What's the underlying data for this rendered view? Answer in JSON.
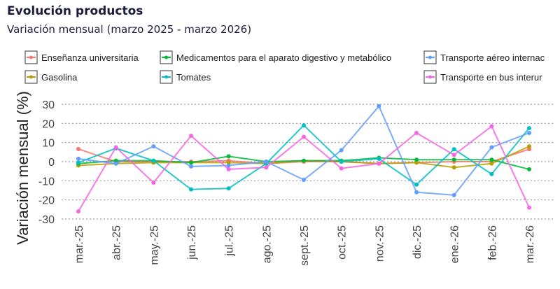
{
  "title": "Evolución productos",
  "subtitle": "Variación mensual (marzo 2025 - marzo 2026)",
  "chart_data": {
    "type": "line",
    "title": "Evolución productos",
    "subtitle": "Variación mensual (marzo 2025 - marzo 2026)",
    "xlabel": "",
    "ylabel": "Variación mensual (%)",
    "ylim": [
      -30,
      30
    ],
    "yticks": [
      30,
      20,
      10,
      0,
      -10,
      -20,
      -30
    ],
    "grid": true,
    "legend": "top",
    "categories": [
      "mar.-25",
      "abr.-25",
      "may.-25",
      "jun.-25",
      "jul.-25",
      "ago.-25",
      "sept.-25",
      "oct.-25",
      "nov.-25",
      "dic.-25",
      "ene.-26",
      "feb.-26",
      "mar.-26"
    ],
    "series": [
      {
        "name": "Enseñanza universitaria",
        "color": "#F8766D",
        "values": [
          6.6,
          0,
          0,
          0,
          0.5,
          -1,
          0,
          0,
          -1,
          -0.5,
          0,
          0,
          6.5
        ]
      },
      {
        "name": "Gasolina",
        "color": "#B79F00",
        "values": [
          -2,
          -1,
          -0.5,
          -0.5,
          -0.5,
          -1,
          0.5,
          0,
          -1,
          -0.5,
          -3,
          -1,
          8
        ]
      },
      {
        "name": "Medicamentos para el aparato digestivo y metabólico",
        "color": "#00BA38",
        "values": [
          -1,
          0.5,
          0.5,
          -0.5,
          2.8,
          0,
          0.5,
          0.5,
          2,
          1,
          1,
          1,
          -4
        ]
      },
      {
        "name": "Tomates",
        "color": "#00BFC4",
        "values": [
          -0.5,
          7,
          0.5,
          -14.5,
          -14,
          -1,
          19,
          0,
          1.5,
          -12,
          6.5,
          -6.5,
          17.5
        ]
      },
      {
        "name": "Transporte aéreo internac",
        "color": "#619CFF",
        "values": [
          1.5,
          -1,
          8,
          -2.5,
          -2,
          0,
          -9.5,
          6,
          29,
          -16,
          -17.5,
          7.5,
          15
        ]
      },
      {
        "name": "Transporte en bus interur",
        "color": "#F564E3",
        "values": [
          -26,
          7.5,
          -11,
          13.5,
          -4,
          -3,
          13,
          -3.5,
          -1,
          15,
          3.5,
          18.5,
          -24
        ]
      }
    ]
  }
}
